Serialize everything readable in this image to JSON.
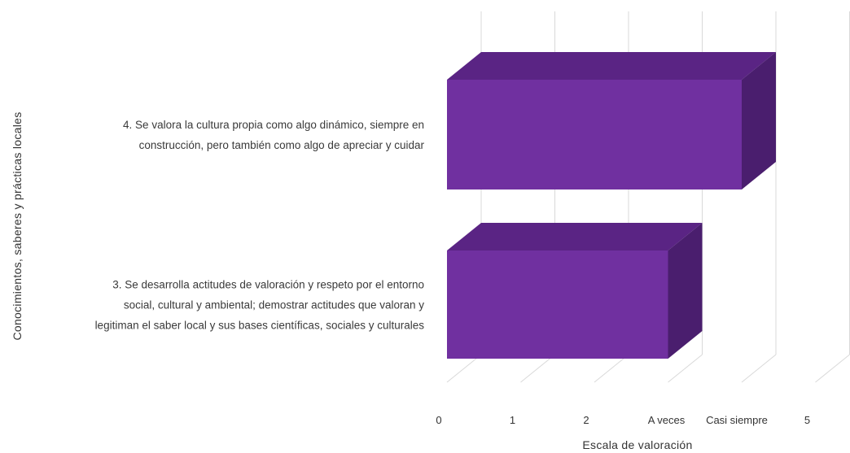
{
  "chart_data": {
    "type": "bar",
    "orientation": "horizontal",
    "style": "3d",
    "xlabel": "Escala de valoración",
    "ylabel": "Conocimientos, saberes y prácticas locales",
    "x_ticks": [
      "0",
      "1",
      "2",
      "A veces",
      "Casi siempre",
      "5"
    ],
    "xlim": [
      0,
      5
    ],
    "grid": true,
    "legend": "none",
    "categories": [
      [
        "4. Se valora la cultura propia como algo dinámico, siempre en",
        "construcción, pero también como algo de apreciar y cuidar"
      ],
      [
        "3. Se desarrolla actitudes de valoración y respeto por el entorno",
        "social, cultural y ambiental; demostrar actitudes que valoran y",
        "legitiman el saber local y sus bases científicas, sociales y culturales"
      ]
    ],
    "values": [
      4,
      3
    ],
    "colors": {
      "front": "#7030A0",
      "top": "#5A2484",
      "side": "#4A1E6E",
      "grid": "#D9D9D9"
    }
  }
}
